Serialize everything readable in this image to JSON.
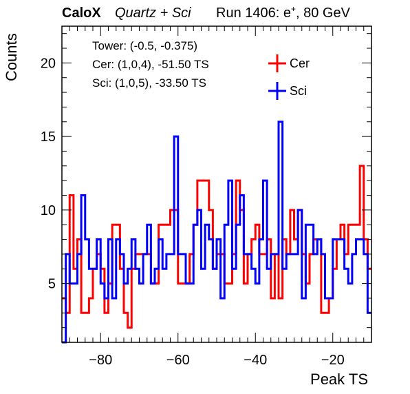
{
  "header": {
    "brand": "CaloX",
    "config": "Quartz + Sci",
    "run_prefix": "Run 1406: e",
    "run_sup": "+",
    "run_suffix": ", 80 GeV"
  },
  "info": {
    "tower": "Tower: (-0.5, -0.375)",
    "cer": "Cer: (1,0,4), -51.50 TS",
    "sci": "Sci: (1,0,5), -33.50 TS"
  },
  "chart_data": {
    "type": "histogram",
    "xlabel": "Peak TS",
    "ylabel": "Counts",
    "xlim": [
      -90,
      -10
    ],
    "ylim": [
      1,
      22.5
    ],
    "bin_width": 1,
    "x_ticks": [
      -80,
      -60,
      -40,
      -20
    ],
    "y_ticks": [
      5,
      10,
      15,
      20
    ],
    "legend_position": "top-right",
    "colors": {
      "cer": "#ff0000",
      "sci": "#0000ff"
    },
    "series": [
      {
        "name": "Cer",
        "color": "#ff0000",
        "bin_start": -90,
        "values": [
          4,
          3,
          11,
          6,
          8,
          3,
          3,
          4,
          6,
          7,
          6,
          3,
          5,
          9,
          9,
          6,
          3,
          2,
          6,
          7,
          7,
          7,
          7,
          5,
          5,
          9,
          9,
          9,
          10,
          10,
          5,
          5,
          5,
          7,
          9,
          12,
          12,
          12,
          10,
          6,
          7,
          7,
          5,
          5,
          7,
          12,
          10,
          5,
          7,
          8,
          9,
          7,
          7,
          8,
          4,
          7,
          4,
          8,
          7,
          10,
          8,
          10,
          7,
          5,
          7,
          8,
          8,
          3,
          3,
          4,
          6,
          8,
          9,
          7,
          9,
          9,
          9,
          13,
          8,
          6
        ]
      },
      {
        "name": "Sci",
        "color": "#0000ff",
        "bin_start": -90,
        "values": [
          1,
          7,
          5,
          5,
          7,
          11,
          8,
          6,
          6,
          8,
          5,
          4,
          8,
          4,
          8,
          7,
          5,
          6,
          8,
          6,
          5,
          7,
          9,
          5,
          6,
          8,
          6,
          7,
          7,
          15,
          7,
          7,
          5,
          5,
          9,
          10,
          6,
          9,
          8,
          6,
          8,
          4,
          9,
          12,
          6,
          9,
          11,
          7,
          7,
          6,
          5,
          8,
          12,
          6,
          7,
          7,
          16,
          6,
          7,
          7,
          7,
          10,
          4,
          9,
          9,
          7,
          8,
          7,
          4,
          4,
          8,
          8,
          8,
          6,
          5,
          7,
          8,
          8,
          7,
          3
        ]
      }
    ]
  }
}
